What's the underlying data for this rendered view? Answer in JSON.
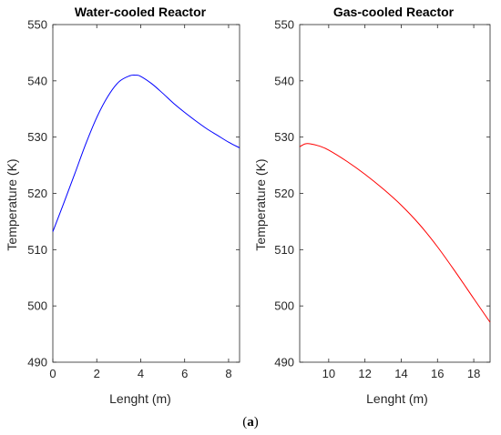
{
  "caption_open": "(",
  "caption_letter": "a",
  "caption_close": ")",
  "chart_data": [
    {
      "type": "line",
      "title": "Water-cooled Reactor",
      "xlabel": "Lenght (m)",
      "ylabel": "Temperature (K)",
      "xlim": [
        0,
        8.5
      ],
      "ylim": [
        490,
        550
      ],
      "xticks": [
        "0",
        "2",
        "4",
        "6",
        "8"
      ],
      "yticks": [
        "490",
        "500",
        "510",
        "520",
        "530",
        "540",
        "550"
      ],
      "grid": false,
      "series": [
        {
          "color": "#0000ff",
          "x": [
            0,
            0.5,
            1,
            1.5,
            2,
            2.5,
            3,
            3.5,
            3.8,
            4,
            4.5,
            5,
            5.5,
            6,
            6.5,
            7,
            7.5,
            8,
            8.5
          ],
          "y": [
            513.2,
            518.3,
            523.5,
            528.8,
            533.5,
            537.2,
            539.8,
            540.9,
            541,
            540.8,
            539.5,
            537.8,
            536,
            534.4,
            532.9,
            531.5,
            530.3,
            529.1,
            528.1
          ]
        }
      ]
    },
    {
      "type": "line",
      "title": "Gas-cooled Reactor",
      "xlabel": "Lenght (m)",
      "ylabel": "Temperature (K)",
      "xlim": [
        8.4,
        18.9
      ],
      "ylim": [
        490,
        550
      ],
      "xticks": [
        "10",
        "12",
        "14",
        "16",
        "18"
      ],
      "yticks": [
        "490",
        "500",
        "510",
        "520",
        "530",
        "540",
        "550"
      ],
      "grid": false,
      "series": [
        {
          "color": "#ff0000",
          "x": [
            8.4,
            8.7,
            9,
            9.5,
            10,
            11,
            12,
            13,
            14,
            15,
            16,
            17,
            18,
            18.9
          ],
          "y": [
            528.3,
            528.8,
            528.8,
            528.4,
            527.7,
            525.7,
            523.4,
            520.8,
            517.9,
            514.5,
            510.5,
            506,
            501.3,
            497.1
          ]
        }
      ]
    }
  ]
}
